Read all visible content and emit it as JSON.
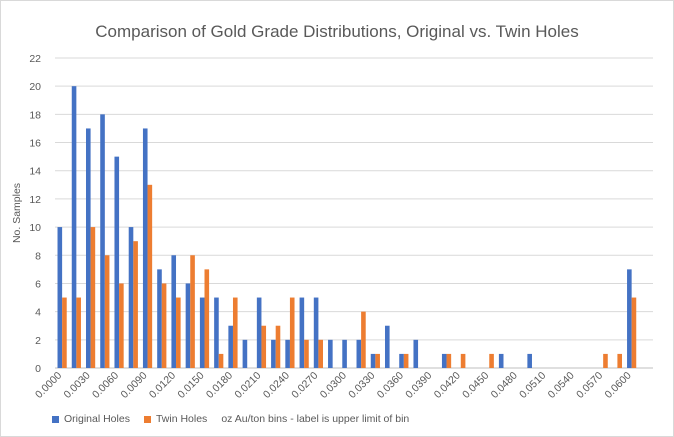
{
  "chart_data": {
    "type": "bar",
    "title": "Comparison of Gold Grade Distributions, Original vs. Twin Holes",
    "xlabel": "oz Au/ton bins - label is upper limit of bin",
    "ylabel": "No. Samples",
    "ylim": [
      0,
      22
    ],
    "yticks": [
      0,
      2,
      4,
      6,
      8,
      10,
      12,
      14,
      16,
      18,
      20,
      22
    ],
    "categories": [
      "0.0000",
      "0.0015",
      "0.0030",
      "0.0045",
      "0.0060",
      "0.0075",
      "0.0090",
      "0.0105",
      "0.0120",
      "0.0135",
      "0.0150",
      "0.0165",
      "0.0180",
      "0.0195",
      "0.0210",
      "0.0225",
      "0.0240",
      "0.0255",
      "0.0270",
      "0.0285",
      "0.0300",
      "0.0315",
      "0.0330",
      "0.0345",
      "0.0360",
      "0.0375",
      "0.0390",
      "0.0405",
      "0.0420",
      "0.0435",
      "0.0450",
      "0.0465",
      "0.0480",
      "0.0495",
      "0.0510",
      "0.0525",
      "0.0540",
      "0.0555",
      "0.0570",
      "0.0585",
      "0.0600",
      "0.0615"
    ],
    "xtick_labels": [
      "0.0000",
      "0.0030",
      "0.0060",
      "0.0090",
      "0.0120",
      "0.0150",
      "0.0180",
      "0.0210",
      "0.0240",
      "0.0270",
      "0.0300",
      "0.0330",
      "0.0360",
      "0.0390",
      "0.0420",
      "0.0450",
      "0.0480",
      "0.0510",
      "0.0540",
      "0.0570",
      "0.0600"
    ],
    "legend_position": "bottom-left",
    "grid": true,
    "series": [
      {
        "name": "Original Holes",
        "color": "#4472c4",
        "values": [
          10,
          20,
          17,
          18,
          15,
          10,
          17,
          7,
          8,
          6,
          5,
          5,
          3,
          2,
          5,
          2,
          2,
          5,
          5,
          2,
          2,
          2,
          1,
          3,
          1,
          2,
          0,
          1,
          0,
          0,
          0,
          1,
          0,
          1,
          0,
          0,
          0,
          0,
          0,
          0,
          7,
          0
        ]
      },
      {
        "name": "Twin Holes",
        "color": "#ed7d31",
        "values": [
          5,
          5,
          10,
          8,
          6,
          9,
          13,
          6,
          5,
          8,
          7,
          1,
          5,
          0,
          3,
          3,
          5,
          2,
          2,
          0,
          0,
          4,
          1,
          0,
          1,
          0,
          0,
          1,
          1,
          0,
          1,
          0,
          0,
          0,
          0,
          0,
          0,
          0,
          1,
          1,
          5,
          0
        ]
      }
    ]
  }
}
